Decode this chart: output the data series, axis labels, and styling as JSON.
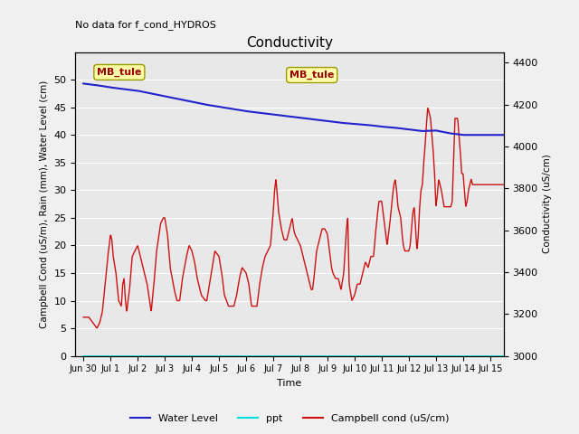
{
  "title": "Conductivity",
  "subtitle": "No data for f_cond_HYDROS",
  "xlabel": "Time",
  "ylabel_left": "Campbell Cond (uS/m), Rain (mm), Water Level (cm)",
  "ylabel_right": "Conductivity (uS/cm)",
  "annotation": "MB_tule",
  "xlim_days": [
    -0.3,
    15.5
  ],
  "ylim_left": [
    0,
    55
  ],
  "ylim_right": [
    3000,
    4450
  ],
  "xtick_labels": [
    "Jun 30",
    "Jul 1",
    "Jul 2",
    "Jul 3",
    "Jul 4",
    "Jul 5",
    "Jul 6",
    "Jul 7",
    "Jul 8",
    "Jul 9",
    "Jul 10",
    "Jul 11",
    "Jul 12",
    "Jul 13",
    "Jul 14",
    "Jul 15"
  ],
  "xtick_positions": [
    0,
    1,
    2,
    3,
    4,
    5,
    6,
    7,
    8,
    9,
    10,
    11,
    12,
    13,
    14,
    15
  ],
  "ytick_left": [
    0,
    5,
    10,
    15,
    20,
    25,
    30,
    35,
    40,
    45,
    50
  ],
  "ytick_right": [
    3000,
    3200,
    3400,
    3600,
    3800,
    4000,
    4200,
    4400
  ],
  "bg_color": "#e8e8e8",
  "grid_color": "#ffffff",
  "fig_bg_color": "#f0f0f0",
  "water_level_color": "#2222cc",
  "ppt_color": "#00dddd",
  "campbell_color": "#cc1111",
  "legend_items": [
    "Water Level",
    "ppt",
    "Campbell cond (uS/cm)"
  ],
  "legend_colors": [
    "#2222cc",
    "#00dddd",
    "#cc1111"
  ],
  "water_level_keypoints": [
    [
      0,
      49.3
    ],
    [
      0.5,
      49.0
    ],
    [
      1.0,
      48.6
    ],
    [
      1.5,
      48.3
    ],
    [
      2.0,
      48.0
    ],
    [
      2.5,
      47.5
    ],
    [
      3.0,
      47.0
    ],
    [
      3.5,
      46.5
    ],
    [
      4.0,
      46.0
    ],
    [
      4.5,
      45.5
    ],
    [
      5.0,
      45.1
    ],
    [
      5.5,
      44.7
    ],
    [
      6.0,
      44.3
    ],
    [
      6.5,
      44.0
    ],
    [
      7.0,
      43.7
    ],
    [
      7.5,
      43.4
    ],
    [
      8.0,
      43.1
    ],
    [
      8.5,
      42.8
    ],
    [
      9.0,
      42.5
    ],
    [
      9.5,
      42.2
    ],
    [
      10.0,
      42.0
    ],
    [
      10.5,
      41.8
    ],
    [
      11.0,
      41.5
    ],
    [
      11.5,
      41.3
    ],
    [
      12.0,
      41.0
    ],
    [
      12.5,
      40.7
    ],
    [
      13.0,
      40.8
    ],
    [
      13.5,
      40.3
    ],
    [
      14.0,
      40.0
    ],
    [
      14.5,
      40.0
    ],
    [
      15.0,
      40.0
    ],
    [
      15.5,
      40.0
    ]
  ],
  "campbell_keypoints": [
    [
      0.0,
      7
    ],
    [
      0.2,
      7
    ],
    [
      0.35,
      6
    ],
    [
      0.5,
      5
    ],
    [
      0.6,
      6
    ],
    [
      0.7,
      8
    ],
    [
      0.8,
      13
    ],
    [
      0.9,
      18
    ],
    [
      1.0,
      22
    ],
    [
      1.05,
      21
    ],
    [
      1.1,
      18
    ],
    [
      1.2,
      15
    ],
    [
      1.3,
      10
    ],
    [
      1.4,
      9
    ],
    [
      1.45,
      13
    ],
    [
      1.5,
      14
    ],
    [
      1.55,
      10
    ],
    [
      1.6,
      8
    ],
    [
      1.7,
      12
    ],
    [
      1.8,
      18
    ],
    [
      1.9,
      19
    ],
    [
      2.0,
      20
    ],
    [
      2.1,
      18
    ],
    [
      2.2,
      16
    ],
    [
      2.35,
      13
    ],
    [
      2.5,
      8
    ],
    [
      2.6,
      13
    ],
    [
      2.7,
      19
    ],
    [
      2.85,
      24
    ],
    [
      2.95,
      25
    ],
    [
      3.0,
      25
    ],
    [
      3.1,
      22
    ],
    [
      3.2,
      16
    ],
    [
      3.35,
      12
    ],
    [
      3.45,
      10
    ],
    [
      3.55,
      10
    ],
    [
      3.65,
      14
    ],
    [
      3.8,
      18
    ],
    [
      3.9,
      20
    ],
    [
      4.0,
      19
    ],
    [
      4.1,
      17
    ],
    [
      4.2,
      14
    ],
    [
      4.35,
      11
    ],
    [
      4.5,
      10
    ],
    [
      4.55,
      10
    ],
    [
      4.65,
      13
    ],
    [
      4.75,
      16
    ],
    [
      4.85,
      19
    ],
    [
      5.0,
      18
    ],
    [
      5.1,
      15
    ],
    [
      5.2,
      11
    ],
    [
      5.35,
      9
    ],
    [
      5.5,
      9
    ],
    [
      5.55,
      9
    ],
    [
      5.65,
      11
    ],
    [
      5.75,
      14
    ],
    [
      5.85,
      16
    ],
    [
      6.0,
      15
    ],
    [
      6.1,
      13
    ],
    [
      6.15,
      11
    ],
    [
      6.2,
      9
    ],
    [
      6.3,
      9
    ],
    [
      6.4,
      9
    ],
    [
      6.5,
      13
    ],
    [
      6.6,
      16
    ],
    [
      6.7,
      18
    ],
    [
      6.8,
      19
    ],
    [
      6.9,
      20
    ],
    [
      7.0,
      26
    ],
    [
      7.05,
      30
    ],
    [
      7.1,
      32
    ],
    [
      7.15,
      29
    ],
    [
      7.2,
      26
    ],
    [
      7.3,
      23
    ],
    [
      7.4,
      21
    ],
    [
      7.5,
      21
    ],
    [
      7.6,
      23
    ],
    [
      7.7,
      25
    ],
    [
      7.75,
      23
    ],
    [
      7.8,
      22
    ],
    [
      7.9,
      21
    ],
    [
      8.0,
      20
    ],
    [
      8.1,
      18
    ],
    [
      8.2,
      16
    ],
    [
      8.3,
      14
    ],
    [
      8.4,
      12
    ],
    [
      8.45,
      12
    ],
    [
      8.5,
      14
    ],
    [
      8.6,
      19
    ],
    [
      8.7,
      21
    ],
    [
      8.8,
      23
    ],
    [
      8.9,
      23
    ],
    [
      9.0,
      22
    ],
    [
      9.05,
      20
    ],
    [
      9.1,
      18
    ],
    [
      9.15,
      16
    ],
    [
      9.2,
      15
    ],
    [
      9.3,
      14
    ],
    [
      9.4,
      14
    ],
    [
      9.5,
      12
    ],
    [
      9.6,
      15
    ],
    [
      9.7,
      23
    ],
    [
      9.75,
      25
    ],
    [
      9.8,
      13
    ],
    [
      9.9,
      10
    ],
    [
      10.0,
      11
    ],
    [
      10.05,
      12
    ],
    [
      10.1,
      13
    ],
    [
      10.15,
      13
    ],
    [
      10.2,
      13
    ],
    [
      10.3,
      15
    ],
    [
      10.4,
      17
    ],
    [
      10.5,
      16
    ],
    [
      10.55,
      17
    ],
    [
      10.6,
      18
    ],
    [
      10.65,
      18
    ],
    [
      10.7,
      18
    ],
    [
      10.75,
      21
    ],
    [
      10.85,
      26
    ],
    [
      10.9,
      28
    ],
    [
      11.0,
      28
    ],
    [
      11.05,
      26
    ],
    [
      11.1,
      24
    ],
    [
      11.15,
      22
    ],
    [
      11.2,
      20
    ],
    [
      11.3,
      24
    ],
    [
      11.4,
      29
    ],
    [
      11.45,
      31
    ],
    [
      11.5,
      32
    ],
    [
      11.55,
      30
    ],
    [
      11.6,
      27
    ],
    [
      11.7,
      25
    ],
    [
      11.75,
      22
    ],
    [
      11.8,
      20
    ],
    [
      11.85,
      19
    ],
    [
      11.9,
      19
    ],
    [
      12.0,
      19
    ],
    [
      12.05,
      20
    ],
    [
      12.1,
      23
    ],
    [
      12.15,
      26
    ],
    [
      12.2,
      27
    ],
    [
      12.25,
      23
    ],
    [
      12.3,
      19
    ],
    [
      12.35,
      22
    ],
    [
      12.4,
      27
    ],
    [
      12.45,
      30
    ],
    [
      12.5,
      31
    ],
    [
      12.55,
      35
    ],
    [
      12.6,
      38
    ],
    [
      12.65,
      42
    ],
    [
      12.7,
      45
    ],
    [
      12.75,
      44
    ],
    [
      12.8,
      43
    ],
    [
      12.85,
      40
    ],
    [
      12.9,
      37
    ],
    [
      12.95,
      33
    ],
    [
      13.0,
      27
    ],
    [
      13.05,
      29
    ],
    [
      13.1,
      32
    ],
    [
      13.15,
      31
    ],
    [
      13.2,
      30
    ],
    [
      13.3,
      27
    ],
    [
      13.4,
      27
    ],
    [
      13.5,
      27
    ],
    [
      13.55,
      27
    ],
    [
      13.6,
      28
    ],
    [
      13.65,
      35
    ],
    [
      13.7,
      43
    ],
    [
      13.75,
      43
    ],
    [
      13.8,
      43
    ],
    [
      13.85,
      40
    ],
    [
      13.9,
      37
    ],
    [
      13.95,
      33
    ],
    [
      14.0,
      33
    ],
    [
      14.05,
      30
    ],
    [
      14.1,
      27
    ],
    [
      14.15,
      28
    ],
    [
      14.2,
      30
    ],
    [
      14.3,
      32
    ],
    [
      14.35,
      31
    ],
    [
      14.4,
      31
    ],
    [
      14.5,
      31
    ],
    [
      14.6,
      31
    ],
    [
      14.7,
      31
    ],
    [
      14.8,
      31
    ],
    [
      14.9,
      31
    ],
    [
      15.0,
      31
    ],
    [
      15.5,
      31
    ]
  ],
  "ppt_y": 0.0
}
